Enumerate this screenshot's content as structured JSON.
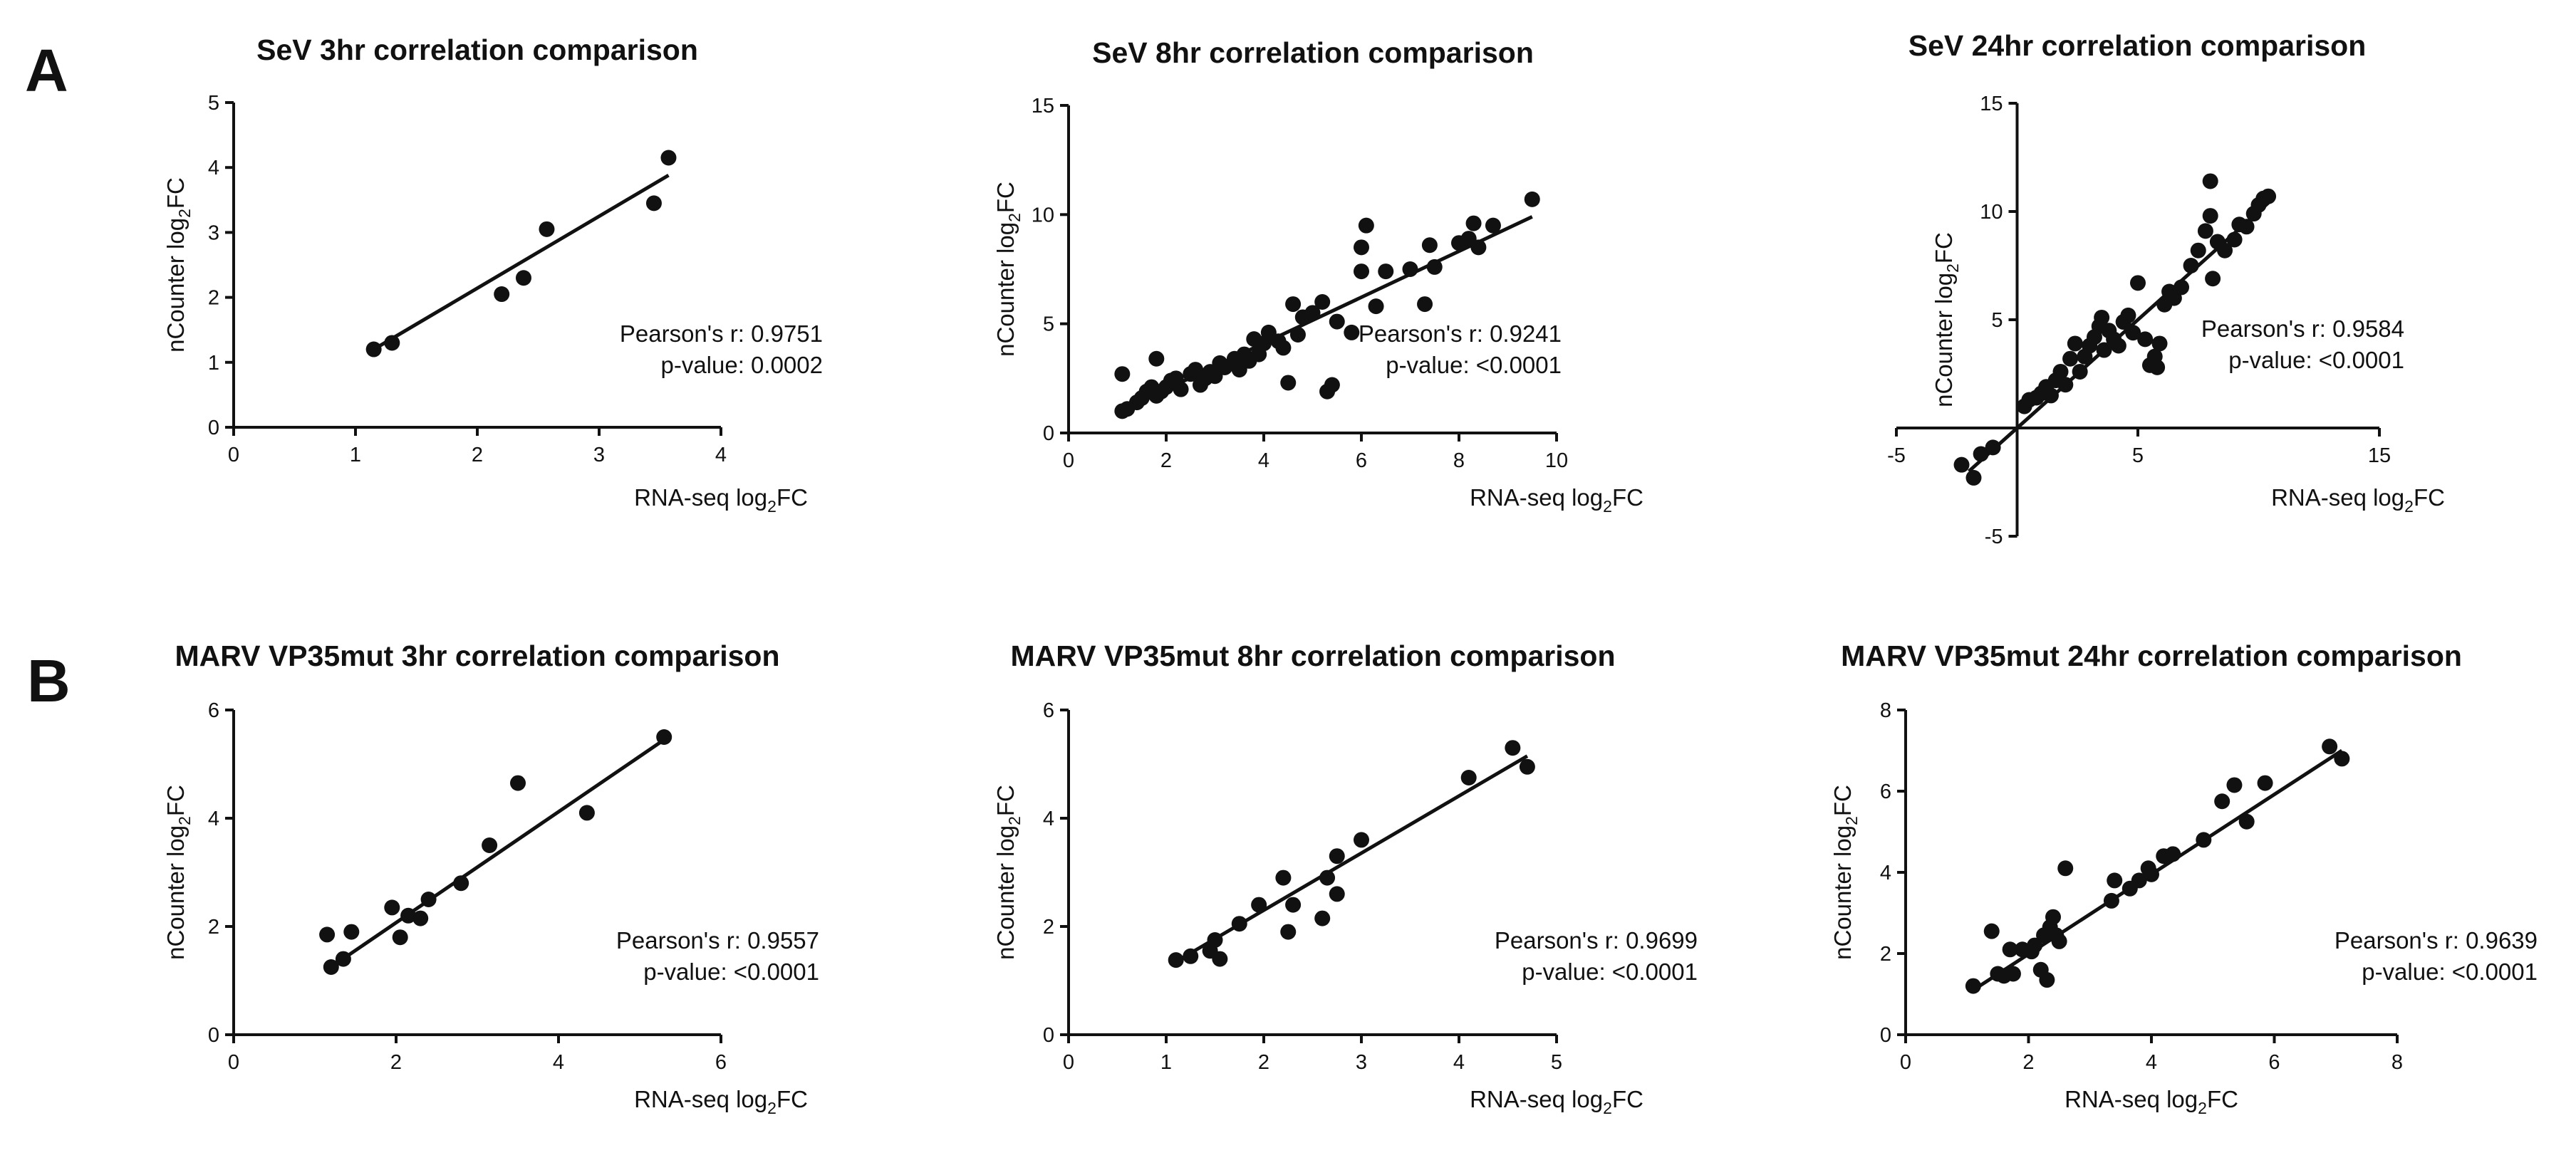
{
  "panels": [
    {
      "letter": "A"
    },
    {
      "letter": "B"
    }
  ],
  "chart_data": [
    {
      "type": "scatter",
      "title": "SeV 3hr correlation comparison",
      "xlabel": "RNA-seq log2FC",
      "ylabel": "nCounter log2FC",
      "xlim": [
        0,
        4
      ],
      "ylim": [
        0,
        5
      ],
      "xticks": [
        0,
        1,
        2,
        3,
        4
      ],
      "yticks": [
        0,
        1,
        2,
        3,
        4,
        5
      ],
      "points": [
        [
          1.15,
          1.2
        ],
        [
          1.3,
          1.3
        ],
        [
          2.2,
          2.05
        ],
        [
          2.38,
          2.3
        ],
        [
          2.57,
          3.05
        ],
        [
          3.45,
          3.45
        ],
        [
          3.57,
          4.15
        ]
      ],
      "fit": [
        [
          1.15,
          1.2
        ],
        [
          3.57,
          3.88
        ]
      ],
      "annotation": [
        "Pearson's r: 0.9751",
        "p-value: 0.0002"
      ],
      "grid": false
    },
    {
      "type": "scatter",
      "title": "SeV 8hr correlation comparison",
      "xlabel": "RNA-seq log2FC",
      "ylabel": "nCounter log2FC",
      "xlim": [
        0,
        10
      ],
      "ylim": [
        0,
        15
      ],
      "xticks": [
        0,
        2,
        4,
        6,
        8,
        10
      ],
      "yticks": [
        0,
        5,
        10,
        15
      ],
      "points": [
        [
          1.1,
          1.0
        ],
        [
          1.2,
          1.1
        ],
        [
          1.1,
          2.7
        ],
        [
          1.4,
          1.4
        ],
        [
          1.5,
          1.6
        ],
        [
          1.6,
          1.9
        ],
        [
          1.7,
          2.1
        ],
        [
          1.8,
          1.7
        ],
        [
          1.8,
          3.4
        ],
        [
          1.9,
          1.9
        ],
        [
          2.0,
          2.1
        ],
        [
          2.1,
          2.4
        ],
        [
          2.2,
          2.5
        ],
        [
          2.3,
          2.0
        ],
        [
          2.5,
          2.7
        ],
        [
          2.6,
          2.9
        ],
        [
          2.7,
          2.2
        ],
        [
          2.8,
          2.5
        ],
        [
          2.9,
          2.8
        ],
        [
          3.0,
          2.6
        ],
        [
          3.1,
          3.2
        ],
        [
          3.2,
          3.0
        ],
        [
          3.4,
          3.4
        ],
        [
          3.5,
          2.9
        ],
        [
          3.6,
          3.6
        ],
        [
          3.7,
          3.3
        ],
        [
          3.8,
          4.3
        ],
        [
          3.9,
          3.6
        ],
        [
          4.0,
          4.1
        ],
        [
          4.1,
          4.6
        ],
        [
          4.3,
          4.2
        ],
        [
          4.4,
          3.9
        ],
        [
          4.5,
          2.3
        ],
        [
          4.6,
          5.9
        ],
        [
          4.7,
          4.5
        ],
        [
          4.8,
          5.3
        ],
        [
          5.0,
          5.5
        ],
        [
          5.2,
          6.0
        ],
        [
          5.3,
          1.9
        ],
        [
          5.4,
          2.2
        ],
        [
          5.5,
          5.1
        ],
        [
          5.8,
          4.6
        ],
        [
          6.0,
          7.4
        ],
        [
          6.0,
          8.5
        ],
        [
          6.1,
          9.5
        ],
        [
          6.3,
          5.8
        ],
        [
          6.5,
          7.4
        ],
        [
          7.0,
          7.5
        ],
        [
          7.3,
          5.9
        ],
        [
          7.4,
          8.6
        ],
        [
          7.5,
          7.6
        ],
        [
          8.0,
          8.7
        ],
        [
          8.2,
          8.9
        ],
        [
          8.3,
          9.6
        ],
        [
          8.4,
          8.5
        ],
        [
          8.7,
          9.5
        ],
        [
          9.5,
          10.7
        ]
      ],
      "fit": [
        [
          1.05,
          1.0
        ],
        [
          9.5,
          9.9
        ]
      ],
      "annotation": [
        "Pearson's r: 0.9241",
        "p-value: <0.0001"
      ],
      "grid": false
    },
    {
      "type": "scatter",
      "title": "SeV 24hr correlation comparison",
      "xlabel": "RNA-seq log2FC",
      "ylabel": "nCounter log2FC",
      "xlim": [
        -5,
        15
      ],
      "ylim": [
        -5,
        15
      ],
      "xticks": [
        -5,
        5,
        15
      ],
      "yticks": [
        -5,
        5,
        10,
        15
      ],
      "points": [
        [
          -2.3,
          -1.7
        ],
        [
          -1.8,
          -2.3
        ],
        [
          -1.5,
          -1.2
        ],
        [
          -1.0,
          -0.9
        ],
        [
          0.3,
          1.0
        ],
        [
          0.5,
          1.3
        ],
        [
          0.8,
          1.4
        ],
        [
          1.0,
          1.6
        ],
        [
          1.2,
          1.9
        ],
        [
          1.4,
          1.5
        ],
        [
          1.6,
          2.2
        ],
        [
          1.8,
          2.6
        ],
        [
          2.0,
          2.0
        ],
        [
          2.2,
          3.2
        ],
        [
          2.4,
          3.9
        ],
        [
          2.6,
          2.6
        ],
        [
          2.8,
          3.3
        ],
        [
          3.0,
          3.8
        ],
        [
          3.2,
          4.2
        ],
        [
          3.4,
          4.7
        ],
        [
          3.5,
          5.1
        ],
        [
          3.6,
          3.6
        ],
        [
          3.8,
          4.5
        ],
        [
          4.0,
          4.1
        ],
        [
          4.2,
          3.8
        ],
        [
          4.4,
          4.9
        ],
        [
          4.6,
          5.2
        ],
        [
          4.8,
          4.4
        ],
        [
          5.0,
          6.7
        ],
        [
          5.3,
          4.1
        ],
        [
          5.5,
          2.9
        ],
        [
          5.7,
          3.3
        ],
        [
          5.8,
          2.8
        ],
        [
          5.9,
          3.9
        ],
        [
          6.1,
          5.7
        ],
        [
          6.3,
          6.3
        ],
        [
          6.5,
          6.0
        ],
        [
          6.8,
          6.5
        ],
        [
          7.2,
          7.5
        ],
        [
          7.5,
          8.2
        ],
        [
          7.8,
          9.1
        ],
        [
          8.0,
          9.8
        ],
        [
          8.0,
          11.4
        ],
        [
          8.1,
          6.9
        ],
        [
          8.3,
          8.6
        ],
        [
          8.6,
          8.2
        ],
        [
          9.0,
          8.7
        ],
        [
          9.2,
          9.4
        ],
        [
          9.5,
          9.3
        ],
        [
          9.8,
          9.9
        ],
        [
          10.0,
          10.3
        ],
        [
          10.2,
          10.6
        ],
        [
          10.4,
          10.7
        ]
      ],
      "fit": [
        [
          -2.0,
          -2.0
        ],
        [
          10.4,
          10.4
        ]
      ],
      "annotation": [
        "Pearson's r: 0.9584",
        "p-value: <0.0001"
      ],
      "grid": false
    },
    {
      "type": "scatter",
      "title": "MARV VP35mut 3hr correlation comparison",
      "xlabel": "RNA-seq log2FC",
      "ylabel": "nCounter log2FC",
      "xlim": [
        0,
        6
      ],
      "ylim": [
        0,
        6
      ],
      "xticks": [
        0,
        2,
        4,
        6
      ],
      "yticks": [
        0,
        2,
        4,
        6
      ],
      "points": [
        [
          1.15,
          1.85
        ],
        [
          1.2,
          1.25
        ],
        [
          1.35,
          1.4
        ],
        [
          1.45,
          1.9
        ],
        [
          1.95,
          2.35
        ],
        [
          2.05,
          1.8
        ],
        [
          2.15,
          2.2
        ],
        [
          2.3,
          2.15
        ],
        [
          2.4,
          2.5
        ],
        [
          2.8,
          2.8
        ],
        [
          3.15,
          3.5
        ],
        [
          3.5,
          4.65
        ],
        [
          4.35,
          4.1
        ],
        [
          5.3,
          5.5
        ]
      ],
      "fit": [
        [
          1.15,
          1.2
        ],
        [
          5.3,
          5.45
        ]
      ],
      "annotation": [
        "Pearson's r: 0.9557",
        "p-value: <0.0001"
      ],
      "grid": false
    },
    {
      "type": "scatter",
      "title": "MARV VP35mut 8hr correlation comparison",
      "xlabel": "RNA-seq log2FC",
      "ylabel": "nCounter log2FC",
      "xlim": [
        0,
        5
      ],
      "ylim": [
        0,
        6
      ],
      "xticks": [
        0,
        1,
        2,
        3,
        4,
        5
      ],
      "yticks": [
        0,
        2,
        4,
        6
      ],
      "points": [
        [
          1.1,
          1.38
        ],
        [
          1.25,
          1.45
        ],
        [
          1.45,
          1.55
        ],
        [
          1.5,
          1.75
        ],
        [
          1.55,
          1.4
        ],
        [
          1.75,
          2.05
        ],
        [
          1.95,
          2.4
        ],
        [
          2.2,
          2.9
        ],
        [
          2.25,
          1.9
        ],
        [
          2.3,
          2.4
        ],
        [
          2.6,
          2.15
        ],
        [
          2.65,
          2.9
        ],
        [
          2.75,
          2.6
        ],
        [
          2.75,
          3.3
        ],
        [
          3.0,
          3.6
        ],
        [
          4.1,
          4.75
        ],
        [
          4.55,
          5.3
        ],
        [
          4.7,
          4.95
        ]
      ],
      "fit": [
        [
          1.1,
          1.35
        ],
        [
          4.7,
          5.15
        ]
      ],
      "annotation": [
        "Pearson's r: 0.9699",
        "p-value: <0.0001"
      ],
      "grid": false
    },
    {
      "type": "scatter",
      "title": "MARV VP35mut 24hr correlation comparison",
      "xlabel": "RNA-seq log2FC",
      "ylabel": "nCounter log2FC",
      "xlim": [
        0,
        8
      ],
      "ylim": [
        0,
        8
      ],
      "xticks": [
        0,
        2,
        4,
        6,
        8
      ],
      "yticks": [
        0,
        2,
        4,
        6,
        8
      ],
      "points": [
        [
          1.1,
          1.2
        ],
        [
          1.4,
          2.55
        ],
        [
          1.5,
          1.5
        ],
        [
          1.6,
          1.45
        ],
        [
          1.7,
          2.1
        ],
        [
          1.75,
          1.5
        ],
        [
          1.9,
          2.1
        ],
        [
          2.05,
          2.05
        ],
        [
          2.1,
          2.2
        ],
        [
          2.2,
          1.6
        ],
        [
          2.25,
          2.45
        ],
        [
          2.3,
          1.35
        ],
        [
          2.35,
          2.65
        ],
        [
          2.4,
          2.9
        ],
        [
          2.45,
          2.45
        ],
        [
          2.5,
          2.3
        ],
        [
          2.6,
          4.1
        ],
        [
          3.35,
          3.3
        ],
        [
          3.4,
          3.8
        ],
        [
          3.65,
          3.6
        ],
        [
          3.8,
          3.8
        ],
        [
          3.95,
          4.1
        ],
        [
          4.0,
          3.95
        ],
        [
          4.2,
          4.4
        ],
        [
          4.35,
          4.45
        ],
        [
          4.85,
          4.8
        ],
        [
          5.15,
          5.75
        ],
        [
          5.35,
          6.15
        ],
        [
          5.55,
          5.25
        ],
        [
          5.85,
          6.2
        ],
        [
          6.9,
          7.1
        ],
        [
          7.1,
          6.8
        ]
      ],
      "fit": [
        [
          1.1,
          1.1
        ],
        [
          7.1,
          7.0
        ]
      ],
      "annotation": [
        "Pearson's r: 0.9639",
        "p-value: <0.0001"
      ],
      "grid": false
    }
  ]
}
